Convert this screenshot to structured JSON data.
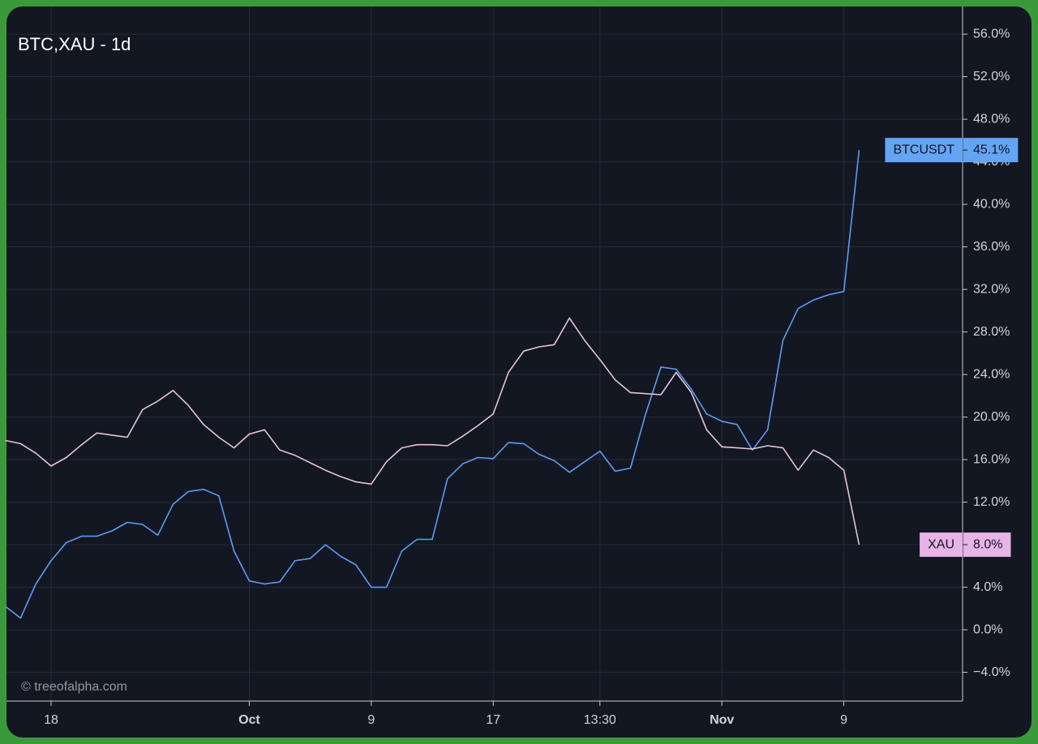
{
  "chart_data": {
    "type": "line",
    "title": "BTC,XAU - 1d",
    "watermark": "© treeofalpha.com",
    "categories": [
      null,
      null,
      null,
      "18",
      null,
      null,
      null,
      null,
      null,
      null,
      null,
      null,
      null,
      null,
      null,
      null,
      "Oct",
      null,
      null,
      null,
      null,
      null,
      null,
      null,
      "9",
      null,
      null,
      null,
      null,
      null,
      null,
      null,
      "17",
      null,
      null,
      null,
      null,
      null,
      null,
      "13:30",
      null,
      null,
      null,
      null,
      null,
      null,
      null,
      "Nov",
      null,
      null,
      null,
      null,
      null,
      null,
      null,
      "9",
      null
    ],
    "series": [
      {
        "name": "BTCUSDT",
        "color": "#5b9cf6",
        "label_color": "#64a4f5",
        "values": [
          2.2,
          1.1,
          4.3,
          6.5,
          8.2,
          8.8,
          8.8,
          9.3,
          10.1,
          9.9,
          8.9,
          11.8,
          13.0,
          13.2,
          12.6,
          7.4,
          4.6,
          4.3,
          4.5,
          6.5,
          6.7,
          8.0,
          6.9,
          6.1,
          4.0,
          4.0,
          7.4,
          8.5,
          8.5,
          14.2,
          15.6,
          16.2,
          16.1,
          17.6,
          17.5,
          16.5,
          15.9,
          14.8,
          15.8,
          16.8,
          14.9,
          15.2,
          20.3,
          24.7,
          24.5,
          22.6,
          20.3,
          19.6,
          19.3,
          16.9,
          18.8,
          27.2,
          30.2,
          31.0,
          31.5,
          31.8,
          45.1
        ],
        "value_labels": [
          null,
          null,
          null,
          null,
          null,
          null,
          null,
          null,
          null,
          null,
          null,
          null,
          null,
          null,
          null,
          null,
          null,
          null,
          null,
          null,
          null,
          null,
          null,
          null,
          null,
          null,
          null,
          null,
          null,
          null,
          null,
          null,
          null,
          null,
          null,
          null,
          null,
          null,
          null,
          null,
          null,
          null,
          null,
          null,
          null,
          null,
          null,
          null,
          null,
          null,
          null,
          null,
          null,
          null,
          null,
          null,
          "45.1%"
        ]
      },
      {
        "name": "XAU",
        "color": "#e8c2da",
        "label_color": "#e8b3e6",
        "values": [
          17.8,
          17.5,
          16.6,
          15.4,
          16.2,
          17.4,
          18.5,
          18.3,
          18.1,
          20.7,
          21.5,
          22.5,
          21.1,
          19.3,
          18.1,
          17.1,
          18.4,
          18.8,
          16.9,
          16.4,
          15.7,
          15.0,
          14.4,
          13.9,
          13.7,
          15.8,
          17.1,
          17.4,
          17.4,
          17.3,
          18.2,
          19.2,
          20.3,
          24.2,
          26.2,
          26.6,
          26.8,
          29.3,
          27.2,
          25.4,
          23.5,
          22.3,
          22.2,
          22.1,
          24.2,
          22.3,
          18.8,
          17.2,
          17.1,
          17.0,
          17.3,
          17.1,
          15.0,
          16.9,
          16.2,
          15.0,
          8.0
        ],
        "value_labels": [
          null,
          null,
          null,
          null,
          null,
          null,
          null,
          null,
          null,
          null,
          null,
          null,
          null,
          null,
          null,
          null,
          null,
          null,
          null,
          null,
          null,
          null,
          null,
          null,
          null,
          null,
          null,
          null,
          null,
          null,
          null,
          null,
          null,
          null,
          null,
          null,
          null,
          null,
          null,
          null,
          null,
          null,
          null,
          null,
          null,
          null,
          null,
          null,
          null,
          null,
          null,
          null,
          null,
          null,
          null,
          null,
          "8.0%"
        ]
      }
    ],
    "ylim": [
      -6.7,
      58.6
    ],
    "yticks": [
      {
        "value": -4,
        "label": "−4.0%"
      },
      {
        "value": 0,
        "label": "0.0%"
      },
      {
        "value": 4,
        "label": "4.0%"
      },
      {
        "value": 8,
        "label": "8.0%"
      },
      {
        "value": 12,
        "label": "12.0%"
      },
      {
        "value": 16,
        "label": "16.0%"
      },
      {
        "value": 20,
        "label": "20.0%"
      },
      {
        "value": 24,
        "label": "24.0%"
      },
      {
        "value": 28,
        "label": "28.0%"
      },
      {
        "value": 32,
        "label": "32.0%"
      },
      {
        "value": 36,
        "label": "36.0%"
      },
      {
        "value": 40,
        "label": "40.0%"
      },
      {
        "value": 44,
        "label": "44.0%"
      },
      {
        "value": 48,
        "label": "48.0%"
      },
      {
        "value": 52,
        "label": "52.0%"
      },
      {
        "value": 56,
        "label": "56.0%"
      }
    ],
    "grid": true
  }
}
